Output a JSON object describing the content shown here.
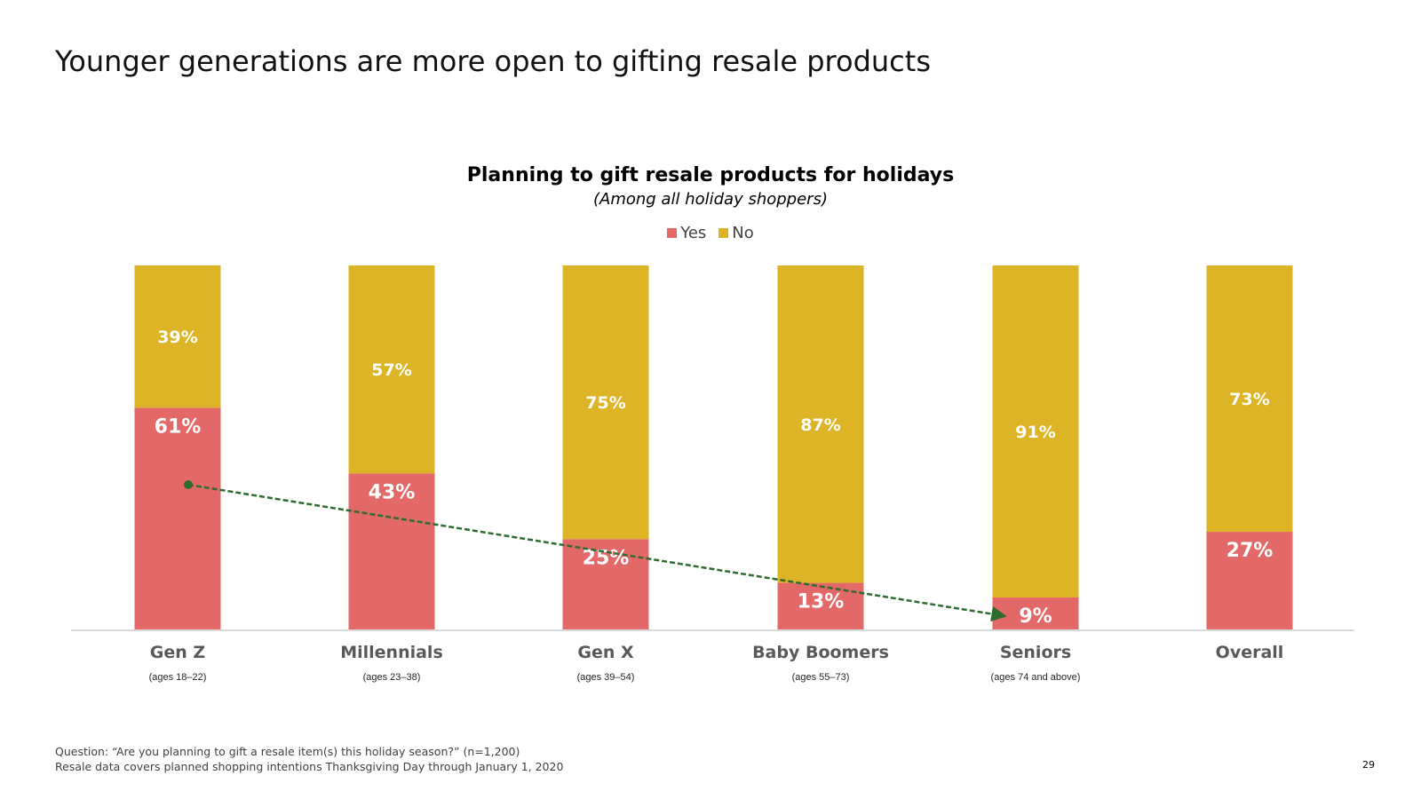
{
  "slide": {
    "title": "Younger generations are more open to gifting resale products",
    "footnote_line1": "Question: “Are you planning to gift a resale item(s) this holiday season?” (n=1,200)",
    "footnote_line2": "Resale data covers planned shopping intentions Thanksgiving Day through January 1, 2020",
    "page_number": "29"
  },
  "colors": {
    "yes": "#E36868",
    "no": "#DDB425",
    "trend": "#2E6B30",
    "axis": "#D9D9D9",
    "category_label": "#595959"
  },
  "chart_data": {
    "type": "bar",
    "stacked": true,
    "title": "Planning to gift resale products for holidays",
    "subtitle": "(Among all holiday shoppers)",
    "legend_position": "top-center",
    "categories": [
      "Gen Z",
      "Millennials",
      "Gen X",
      "Baby Boomers",
      "Seniors",
      "Overall"
    ],
    "category_subtitles": [
      "(ages 18–22)",
      "(ages 23–38)",
      "(ages 39–54)",
      "(ages 55–73)",
      "(ages 74 and above)",
      ""
    ],
    "series": [
      {
        "name": "Yes",
        "values": [
          61,
          43,
          25,
          13,
          9,
          27
        ],
        "labels": [
          "61%",
          "43%",
          "25%",
          "13%",
          "9%",
          "27%"
        ]
      },
      {
        "name": "No",
        "values": [
          39,
          57,
          75,
          87,
          91,
          73
        ],
        "labels": [
          "39%",
          "57%",
          "75%",
          "87%",
          "91%",
          "73%"
        ]
      }
    ],
    "ylim": [
      0,
      100
    ],
    "grid": false,
    "annotation": "dashed trend arrow from Gen Z to Seniors across Yes values"
  }
}
